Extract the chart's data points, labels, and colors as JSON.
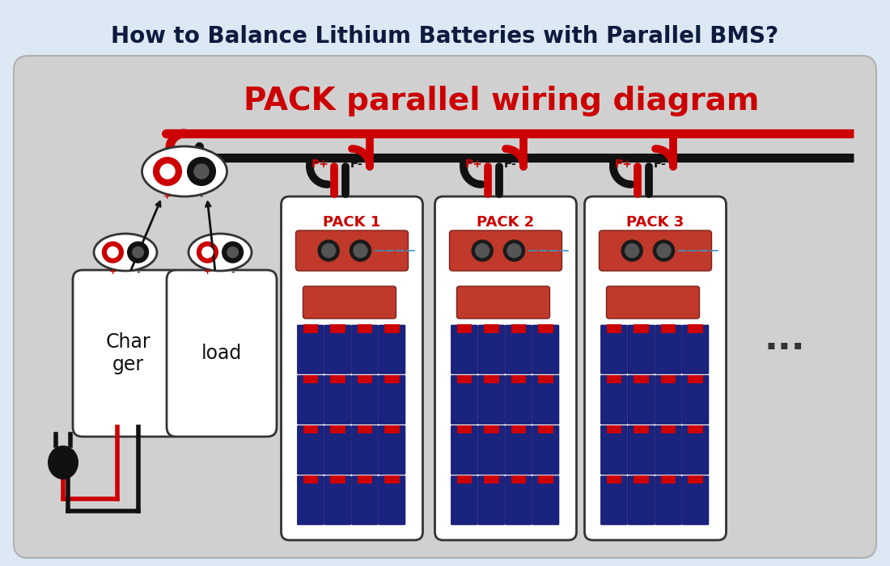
{
  "title": "How to Balance Lithium Batteries with Parallel BMS?",
  "title_color": "#0d1b3e",
  "title_fontsize": 20,
  "bg_outer": "#dce9f5",
  "bg_inner": "#d0d0d0",
  "diagram_title": "PACK parallel wiring diagram",
  "diagram_title_color": "#cc0000",
  "diagram_title_fontsize": 28,
  "pack_labels": [
    "PACK 1",
    "PACK 2",
    "PACK 3"
  ],
  "pack_label_color": "#cc0000",
  "battery_color": "#1a237e",
  "wire_red": "#cc0000",
  "wire_black": "#111111"
}
